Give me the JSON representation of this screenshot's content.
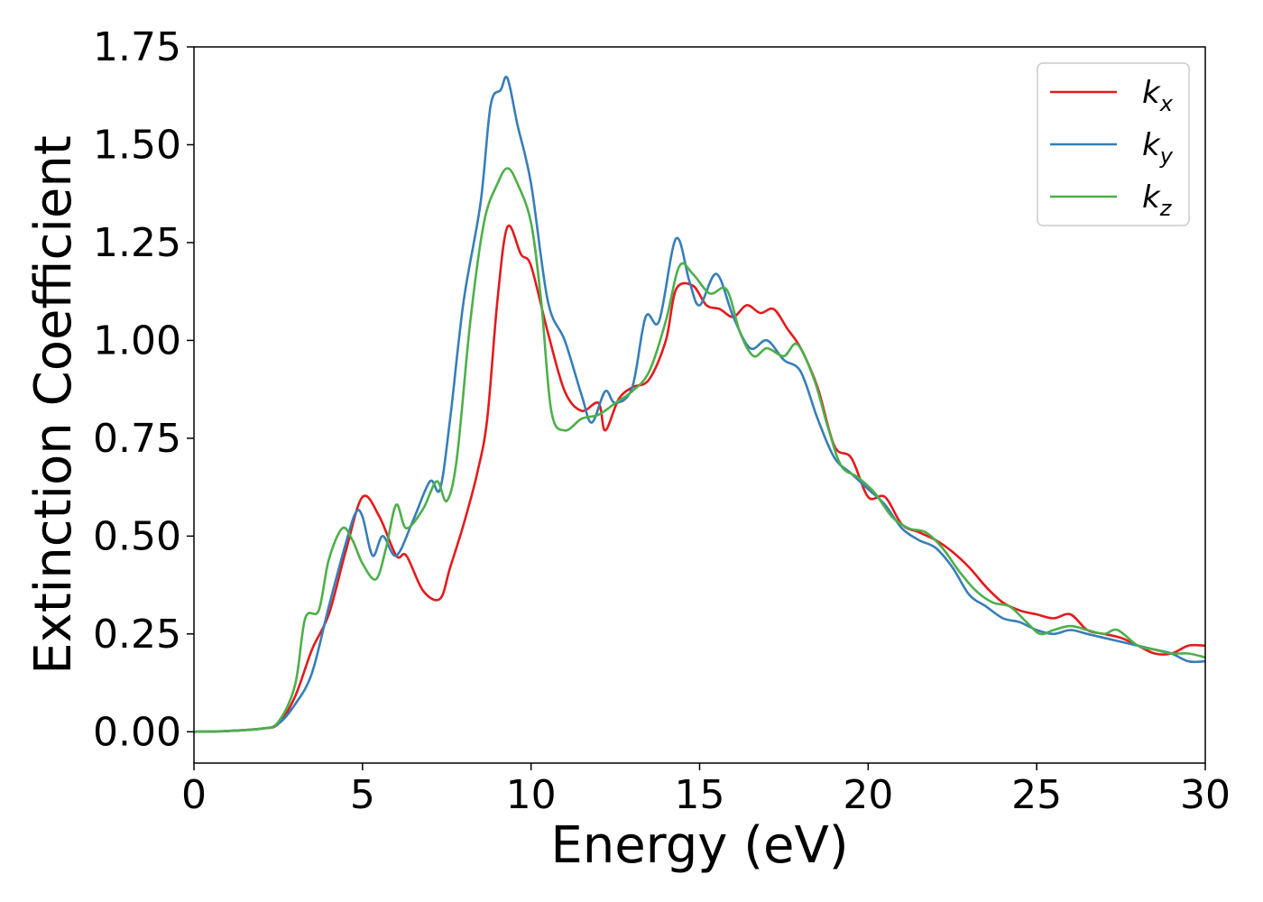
{
  "chart_data": {
    "type": "line",
    "xlabel": "Energy (eV)",
    "ylabel": "Extinction Coefficient",
    "xlim": [
      0,
      30
    ],
    "ylim": [
      -0.08,
      1.75
    ],
    "xticks": [
      0,
      5,
      10,
      15,
      20,
      25,
      30
    ],
    "yticks": [
      0.0,
      0.25,
      0.5,
      0.75,
      1.0,
      1.25,
      1.5,
      1.75
    ],
    "xtick_labels": [
      "0",
      "5",
      "10",
      "15",
      "20",
      "25",
      "30"
    ],
    "ytick_labels": [
      "0.00",
      "0.25",
      "0.50",
      "0.75",
      "1.00",
      "1.25",
      "1.50",
      "1.75"
    ],
    "grid": false,
    "legend": {
      "placement": "top-right"
    },
    "series": [
      {
        "name": "k_x",
        "base": "k",
        "sub": "x",
        "color": "#e41a1c",
        "points": [
          [
            0,
            0.0
          ],
          [
            1,
            0.002
          ],
          [
            2,
            0.008
          ],
          [
            2.5,
            0.02
          ],
          [
            3,
            0.09
          ],
          [
            3.5,
            0.21
          ],
          [
            4,
            0.3
          ],
          [
            4.5,
            0.46
          ],
          [
            5,
            0.6
          ],
          [
            5.5,
            0.55
          ],
          [
            6,
            0.45
          ],
          [
            6.3,
            0.45
          ],
          [
            6.8,
            0.36
          ],
          [
            7.3,
            0.34
          ],
          [
            7.6,
            0.42
          ],
          [
            8,
            0.53
          ],
          [
            8.4,
            0.66
          ],
          [
            8.7,
            0.8
          ],
          [
            9,
            1.1
          ],
          [
            9.3,
            1.29
          ],
          [
            9.7,
            1.22
          ],
          [
            10,
            1.19
          ],
          [
            10.5,
            1.02
          ],
          [
            11,
            0.87
          ],
          [
            11.5,
            0.82
          ],
          [
            12,
            0.84
          ],
          [
            12.2,
            0.77
          ],
          [
            12.6,
            0.85
          ],
          [
            13,
            0.88
          ],
          [
            13.5,
            0.9
          ],
          [
            14,
            1.0
          ],
          [
            14.3,
            1.13
          ],
          [
            14.8,
            1.14
          ],
          [
            15.2,
            1.09
          ],
          [
            15.6,
            1.08
          ],
          [
            16,
            1.06
          ],
          [
            16.4,
            1.09
          ],
          [
            16.8,
            1.07
          ],
          [
            17.2,
            1.08
          ],
          [
            17.6,
            1.03
          ],
          [
            18,
            0.98
          ],
          [
            18.5,
            0.88
          ],
          [
            19,
            0.73
          ],
          [
            19.5,
            0.7
          ],
          [
            20,
            0.6
          ],
          [
            20.5,
            0.6
          ],
          [
            21,
            0.53
          ],
          [
            21.5,
            0.51
          ],
          [
            22,
            0.49
          ],
          [
            22.5,
            0.46
          ],
          [
            23,
            0.42
          ],
          [
            23.5,
            0.37
          ],
          [
            24,
            0.33
          ],
          [
            24.5,
            0.31
          ],
          [
            25,
            0.3
          ],
          [
            25.5,
            0.29
          ],
          [
            26,
            0.3
          ],
          [
            26.5,
            0.26
          ],
          [
            27,
            0.25
          ],
          [
            27.5,
            0.24
          ],
          [
            28,
            0.22
          ],
          [
            28.5,
            0.2
          ],
          [
            29,
            0.2
          ],
          [
            29.5,
            0.22
          ],
          [
            30,
            0.22
          ]
        ]
      },
      {
        "name": "k_y",
        "base": "k",
        "sub": "y",
        "color": "#377eb8",
        "points": [
          [
            0,
            0.0
          ],
          [
            1,
            0.002
          ],
          [
            2,
            0.008
          ],
          [
            2.5,
            0.02
          ],
          [
            3,
            0.07
          ],
          [
            3.5,
            0.15
          ],
          [
            4,
            0.32
          ],
          [
            4.5,
            0.48
          ],
          [
            4.8,
            0.56
          ],
          [
            5,
            0.55
          ],
          [
            5.3,
            0.45
          ],
          [
            5.6,
            0.5
          ],
          [
            6,
            0.45
          ],
          [
            6.5,
            0.54
          ],
          [
            7,
            0.64
          ],
          [
            7.3,
            0.62
          ],
          [
            7.6,
            0.8
          ],
          [
            8,
            1.1
          ],
          [
            8.5,
            1.35
          ],
          [
            8.8,
            1.6
          ],
          [
            9.1,
            1.64
          ],
          [
            9.3,
            1.67
          ],
          [
            9.6,
            1.55
          ],
          [
            10,
            1.4
          ],
          [
            10.5,
            1.1
          ],
          [
            11,
            1.0
          ],
          [
            11.5,
            0.86
          ],
          [
            11.8,
            0.79
          ],
          [
            12.2,
            0.87
          ],
          [
            12.5,
            0.84
          ],
          [
            13,
            0.88
          ],
          [
            13.4,
            1.06
          ],
          [
            13.8,
            1.05
          ],
          [
            14.3,
            1.26
          ],
          [
            14.7,
            1.15
          ],
          [
            15,
            1.09
          ],
          [
            15.5,
            1.17
          ],
          [
            16,
            1.06
          ],
          [
            16.5,
            0.98
          ],
          [
            17,
            1.0
          ],
          [
            17.5,
            0.95
          ],
          [
            18,
            0.92
          ],
          [
            18.5,
            0.8
          ],
          [
            19,
            0.7
          ],
          [
            19.5,
            0.66
          ],
          [
            20,
            0.62
          ],
          [
            20.5,
            0.58
          ],
          [
            21,
            0.52
          ],
          [
            21.5,
            0.49
          ],
          [
            22,
            0.47
          ],
          [
            22.5,
            0.42
          ],
          [
            23,
            0.35
          ],
          [
            23.5,
            0.32
          ],
          [
            24,
            0.29
          ],
          [
            24.5,
            0.28
          ],
          [
            25,
            0.26
          ],
          [
            25.5,
            0.25
          ],
          [
            26,
            0.26
          ],
          [
            26.5,
            0.25
          ],
          [
            27,
            0.24
          ],
          [
            27.5,
            0.23
          ],
          [
            28,
            0.22
          ],
          [
            28.5,
            0.21
          ],
          [
            29,
            0.2
          ],
          [
            29.5,
            0.18
          ],
          [
            30,
            0.18
          ]
        ]
      },
      {
        "name": "k_z",
        "base": "k",
        "sub": "z",
        "color": "#4daf4a",
        "points": [
          [
            0,
            0.0
          ],
          [
            1,
            0.002
          ],
          [
            2,
            0.008
          ],
          [
            2.5,
            0.025
          ],
          [
            3,
            0.12
          ],
          [
            3.3,
            0.29
          ],
          [
            3.7,
            0.31
          ],
          [
            4,
            0.44
          ],
          [
            4.4,
            0.52
          ],
          [
            4.7,
            0.49
          ],
          [
            5,
            0.43
          ],
          [
            5.4,
            0.39
          ],
          [
            5.7,
            0.47
          ],
          [
            6,
            0.58
          ],
          [
            6.3,
            0.52
          ],
          [
            6.8,
            0.57
          ],
          [
            7.2,
            0.64
          ],
          [
            7.5,
            0.59
          ],
          [
            7.8,
            0.7
          ],
          [
            8.2,
            1.05
          ],
          [
            8.6,
            1.3
          ],
          [
            9,
            1.4
          ],
          [
            9.3,
            1.44
          ],
          [
            9.6,
            1.4
          ],
          [
            10,
            1.3
          ],
          [
            10.3,
            1.1
          ],
          [
            10.6,
            0.82
          ],
          [
            11,
            0.77
          ],
          [
            11.5,
            0.8
          ],
          [
            12,
            0.81
          ],
          [
            12.5,
            0.84
          ],
          [
            13,
            0.87
          ],
          [
            13.5,
            0.92
          ],
          [
            14,
            1.05
          ],
          [
            14.4,
            1.19
          ],
          [
            14.8,
            1.17
          ],
          [
            15.3,
            1.12
          ],
          [
            15.8,
            1.13
          ],
          [
            16.2,
            1.02
          ],
          [
            16.6,
            0.96
          ],
          [
            17,
            0.98
          ],
          [
            17.5,
            0.96
          ],
          [
            17.9,
            0.99
          ],
          [
            18.4,
            0.9
          ],
          [
            18.8,
            0.78
          ],
          [
            19.2,
            0.68
          ],
          [
            19.7,
            0.65
          ],
          [
            20.2,
            0.61
          ],
          [
            20.7,
            0.55
          ],
          [
            21.2,
            0.52
          ],
          [
            21.7,
            0.51
          ],
          [
            22.2,
            0.47
          ],
          [
            22.7,
            0.41
          ],
          [
            23.2,
            0.36
          ],
          [
            23.7,
            0.33
          ],
          [
            24.2,
            0.32
          ],
          [
            24.7,
            0.28
          ],
          [
            25.1,
            0.25
          ],
          [
            25.5,
            0.26
          ],
          [
            26,
            0.27
          ],
          [
            26.5,
            0.26
          ],
          [
            27,
            0.25
          ],
          [
            27.4,
            0.26
          ],
          [
            28,
            0.22
          ],
          [
            28.5,
            0.21
          ],
          [
            29,
            0.2
          ],
          [
            29.5,
            0.2
          ],
          [
            30,
            0.19
          ]
        ]
      }
    ]
  }
}
